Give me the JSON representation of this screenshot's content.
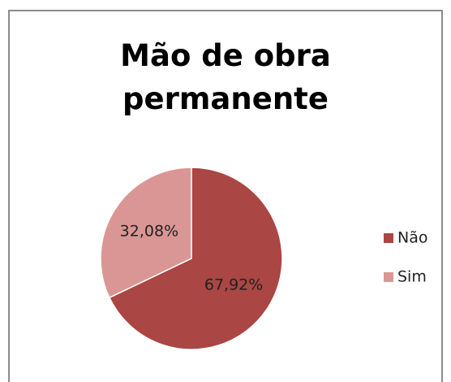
{
  "chart_data": {
    "type": "pie",
    "title": "Mão de obra permanente",
    "categories": [
      "Não",
      "Sim"
    ],
    "values": [
      67.92,
      32.08
    ],
    "value_labels": [
      "67,92%",
      "32,08%"
    ],
    "colors": [
      "#aa4643",
      "#d99694"
    ],
    "legend": "right"
  }
}
